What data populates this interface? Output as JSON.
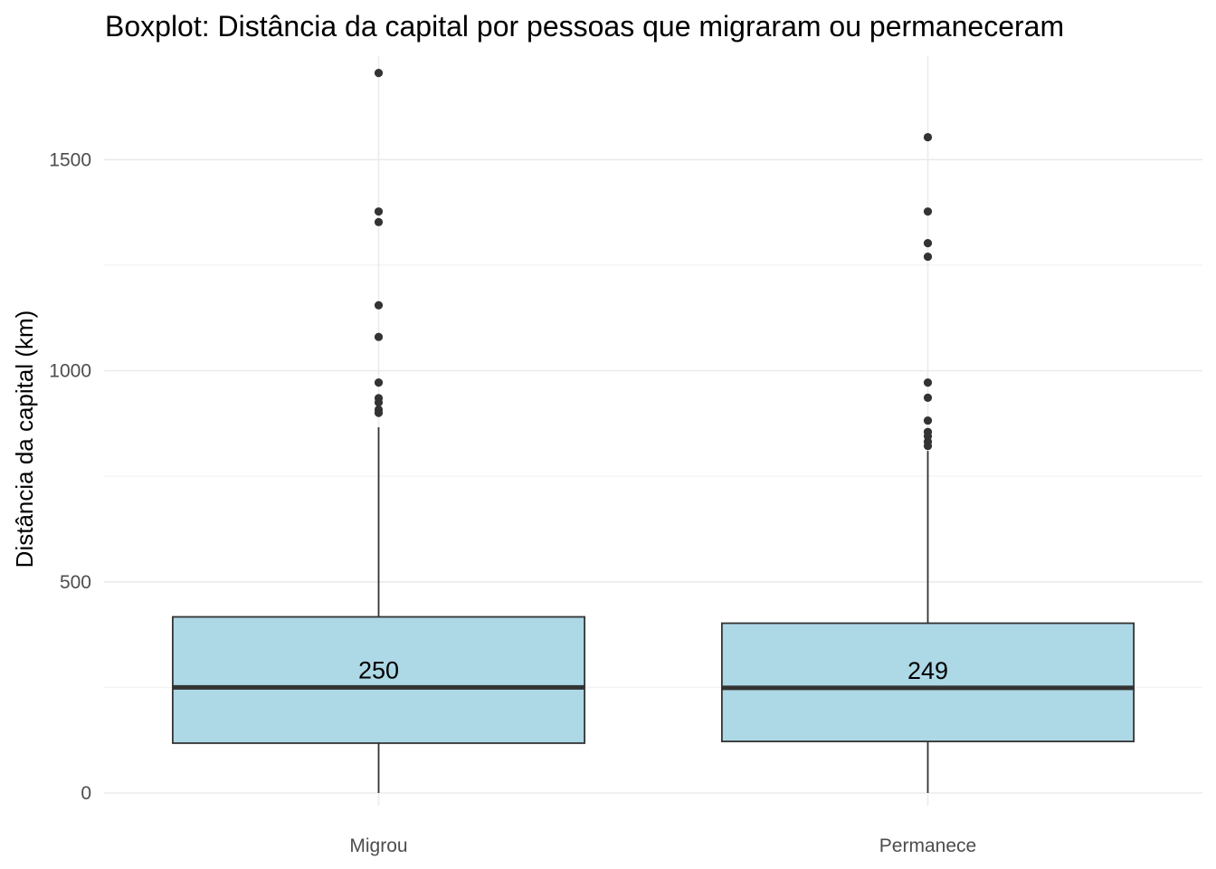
{
  "chart_data": {
    "type": "boxplot",
    "title": "Boxplot: Distância da capital por pessoas que migraram ou permaneceram",
    "xlabel": "",
    "ylabel": "Distância da capital (km)",
    "ylim": [
      -30,
      1745
    ],
    "yticks": [
      0,
      500,
      1000,
      1500
    ],
    "grid": true,
    "legend": "none",
    "box_fill": "#add8e6",
    "box_stroke": "#333333",
    "categories": [
      "Migrou",
      "Permanece"
    ],
    "boxes": [
      {
        "category": "Migrou",
        "min": 0,
        "q1": 118,
        "median": 250,
        "q3": 417,
        "max": 866,
        "median_label": "250",
        "outliers": [
          1705,
          1377,
          1352,
          1155,
          1080,
          972,
          935,
          925,
          908,
          900
        ]
      },
      {
        "category": "Permanece",
        "min": 0,
        "q1": 122,
        "median": 249,
        "q3": 402,
        "max": 810,
        "median_label": "249",
        "outliers": [
          1553,
          1377,
          1302,
          1270,
          972,
          936,
          882,
          855,
          845,
          832,
          822
        ]
      }
    ]
  }
}
